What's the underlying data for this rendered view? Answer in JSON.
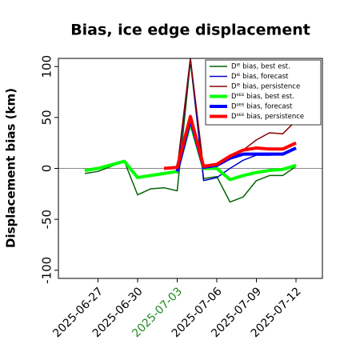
{
  "chart_data": {
    "type": "line",
    "title": "Bias, ice edge displacement",
    "y_label": "Displacement bias (km)",
    "xlim": [
      "2025-06-24",
      "2025-07-14"
    ],
    "xticks": [
      "2025-06-27",
      "2025-06-30",
      "2025-07-03",
      "2025-07-06",
      "2025-07-09",
      "2025-07-12"
    ],
    "xtick_colors": [
      "#000000",
      "#000000",
      "#228b22",
      "#000000",
      "#000000",
      "#000000"
    ],
    "ylim": [
      -108,
      108
    ],
    "yticks": [
      -100,
      -50,
      0,
      50,
      100
    ],
    "reference_line": 0,
    "legend": "upper right",
    "series": [
      {
        "name": "Dᴵᴱ bias, best est.",
        "color": "#006400",
        "width": 1.5,
        "x": [
          "2025-06-26",
          "2025-06-27",
          "2025-06-29",
          "2025-06-30",
          "2025-07-01",
          "2025-07-02",
          "2025-07-03",
          "2025-07-04",
          "2025-07-05",
          "2025-07-06",
          "2025-07-07",
          "2025-07-08",
          "2025-07-09",
          "2025-07-10",
          "2025-07-11",
          "2025-07-12"
        ],
        "values": [
          -5,
          -3,
          7,
          -26,
          -20,
          -19,
          -22,
          105,
          -10,
          -8,
          -33,
          -28,
          -12,
          -7,
          -7,
          2
        ]
      },
      {
        "name": "Dᴵᴱ bias, forecast",
        "color": "#0000cd",
        "width": 1.5,
        "x": [
          "2025-07-03",
          "2025-07-04",
          "2025-07-05",
          "2025-07-06",
          "2025-07-07",
          "2025-07-08",
          "2025-07-09",
          "2025-07-10",
          "2025-07-11",
          "2025-07-12"
        ],
        "values": [
          -5,
          108,
          -12,
          -9,
          0,
          8,
          13,
          13,
          14,
          19
        ]
      },
      {
        "name": "Dᴵᴱ bias, persistence",
        "color": "#8b0000",
        "width": 1.5,
        "x": [
          "2025-07-03",
          "2025-07-04",
          "2025-07-05",
          "2025-07-06",
          "2025-07-07",
          "2025-07-08",
          "2025-07-09",
          "2025-07-10",
          "2025-07-11",
          "2025-07-12"
        ],
        "values": [
          0,
          108,
          0,
          2,
          10,
          18,
          28,
          35,
          34,
          47
        ]
      },
      {
        "name": "Dᴵᴵᴱᴱ bias, best est.",
        "color": "#00ff00",
        "width": 4,
        "x": [
          "2025-06-26",
          "2025-06-27",
          "2025-06-29",
          "2025-06-30",
          "2025-07-01",
          "2025-07-02",
          "2025-07-03",
          "2025-07-04",
          "2025-07-05",
          "2025-07-06",
          "2025-07-07",
          "2025-07-08",
          "2025-07-09",
          "2025-07-10",
          "2025-07-11",
          "2025-07-12"
        ],
        "values": [
          -2,
          0,
          7,
          -9,
          -7,
          -5,
          -3,
          45,
          0,
          0,
          -11,
          -7,
          -4,
          -2,
          -1,
          3
        ]
      },
      {
        "name": "Dᴵᴵᴱᴱ bias, forecast",
        "color": "#0000ff",
        "width": 4,
        "x": [
          "2025-07-03",
          "2025-07-04",
          "2025-07-05",
          "2025-07-06",
          "2025-07-07",
          "2025-07-08",
          "2025-07-09",
          "2025-07-10",
          "2025-07-11",
          "2025-07-12"
        ],
        "values": [
          -3,
          48,
          1,
          3,
          10,
          14,
          14,
          14,
          14,
          20
        ]
      },
      {
        "name": "Dᴵᴵᴱᴱ bias, persistence",
        "color": "#ff0000",
        "width": 4,
        "x": [
          "2025-07-02",
          "2025-07-03",
          "2025-07-04",
          "2025-07-05",
          "2025-07-06",
          "2025-07-07",
          "2025-07-08",
          "2025-07-09",
          "2025-07-10",
          "2025-07-11",
          "2025-07-12"
        ],
        "values": [
          0,
          1,
          51,
          2,
          4,
          12,
          18,
          20,
          19,
          19,
          25
        ]
      }
    ]
  }
}
